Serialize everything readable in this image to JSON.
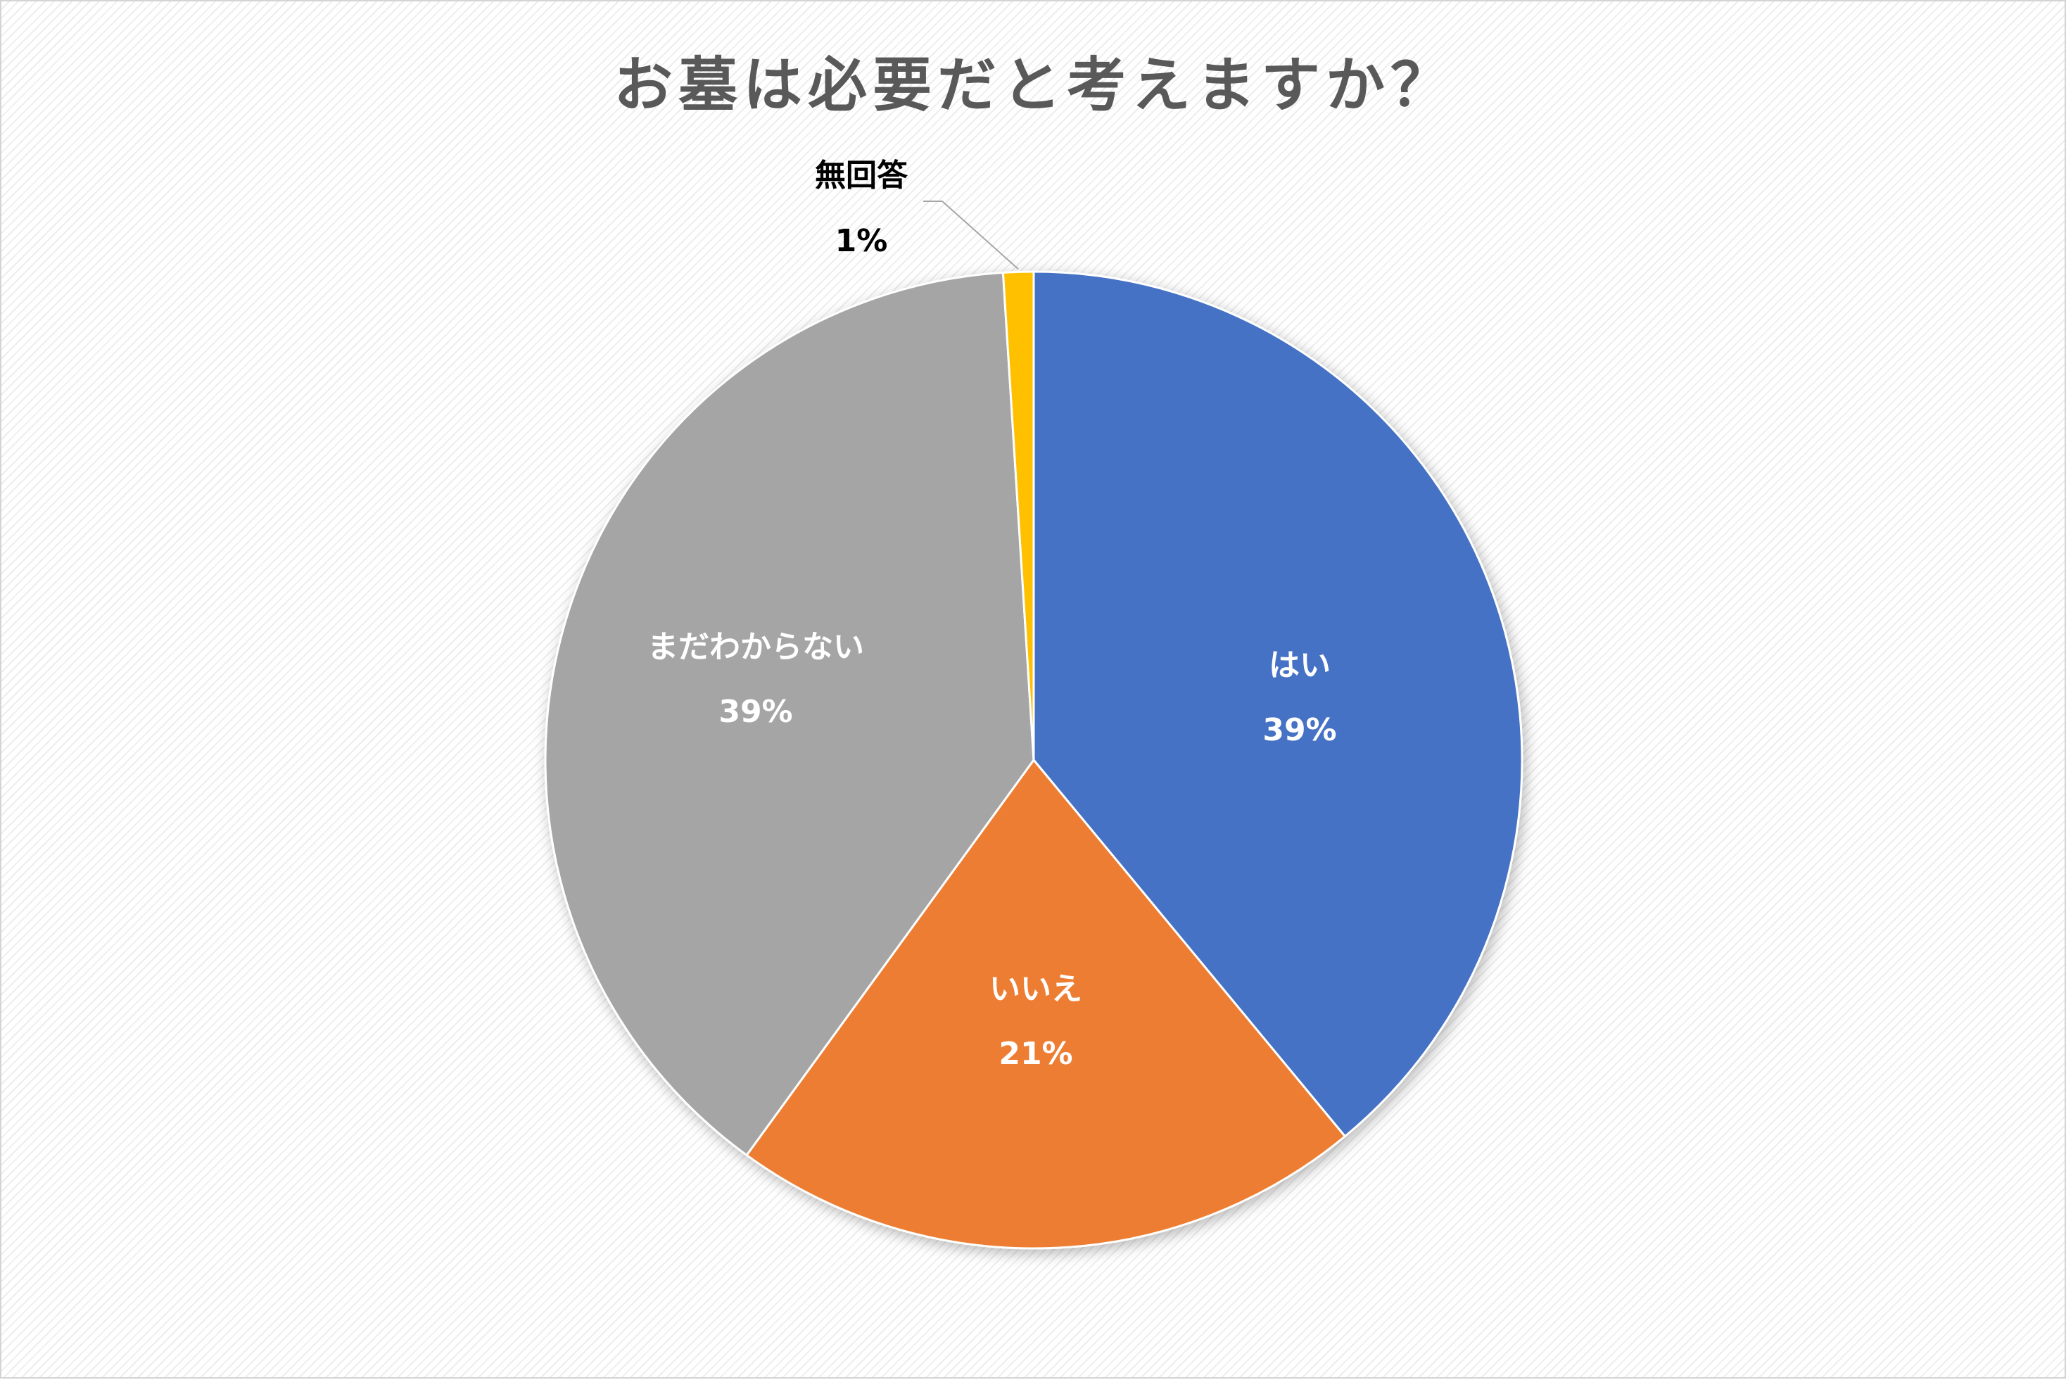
{
  "chart_data": {
    "type": "pie",
    "title": "お墓は必要だと考えますか？",
    "slices": [
      {
        "label": "はい",
        "value": 39,
        "value_label": "39%",
        "color": "#4472C4",
        "label_color": "#ffffff"
      },
      {
        "label": "いいえ",
        "value": 21,
        "value_label": "21%",
        "color": "#ED7D31",
        "label_color": "#ffffff"
      },
      {
        "label": "まだわからない",
        "value": 39,
        "value_label": "39%",
        "color": "#A5A5A5",
        "label_color": "#ffffff"
      },
      {
        "label": "無回答",
        "value": 1,
        "value_label": "1%",
        "color": "#FFC000",
        "label_color": "#000000"
      }
    ],
    "start_angle": "12 o'clock",
    "direction": "clockwise",
    "legend": "none",
    "title_color": "#595959"
  }
}
